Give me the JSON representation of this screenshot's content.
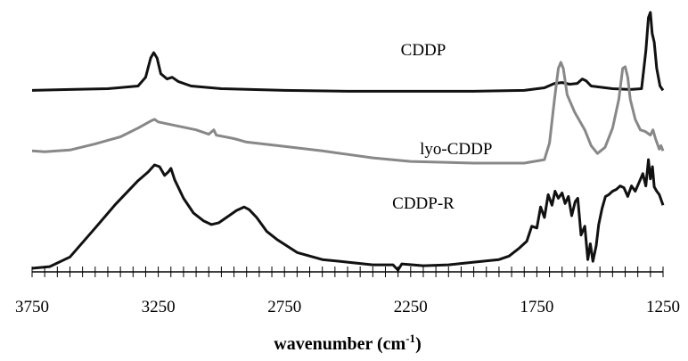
{
  "chart_data": {
    "type": "line",
    "title": "",
    "xlabel": "wavenumber (cm",
    "xlabel_sup": "-1",
    "xlabel_suffix": ")",
    "ylabel": "",
    "x_reversed": true,
    "xlim": [
      3750,
      1250
    ],
    "xticks": [
      "3750",
      "3250",
      "2750",
      "2250",
      "1750",
      "1250"
    ],
    "minor_tick_step": 50,
    "ylim": [
      0,
      3
    ],
    "grid": false,
    "legend": "none (series labeled inline)",
    "series": [
      {
        "name": "CDDP",
        "color": "#111111",
        "label_at": [
          2200,
          2.45
        ],
        "points": [
          [
            3750,
            2.05
          ],
          [
            3600,
            2.06
          ],
          [
            3450,
            2.07
          ],
          [
            3330,
            2.1
          ],
          [
            3300,
            2.2
          ],
          [
            3280,
            2.42
          ],
          [
            3268,
            2.48
          ],
          [
            3255,
            2.42
          ],
          [
            3240,
            2.24
          ],
          [
            3215,
            2.18
          ],
          [
            3195,
            2.2
          ],
          [
            3170,
            2.15
          ],
          [
            3120,
            2.1
          ],
          [
            3000,
            2.07
          ],
          [
            2750,
            2.05
          ],
          [
            2500,
            2.04
          ],
          [
            2250,
            2.04
          ],
          [
            2000,
            2.04
          ],
          [
            1800,
            2.05
          ],
          [
            1720,
            2.08
          ],
          [
            1680,
            2.13
          ],
          [
            1650,
            2.14
          ],
          [
            1620,
            2.12
          ],
          [
            1590,
            2.13
          ],
          [
            1570,
            2.18
          ],
          [
            1555,
            2.16
          ],
          [
            1535,
            2.1
          ],
          [
            1450,
            2.07
          ],
          [
            1380,
            2.06
          ],
          [
            1335,
            2.07
          ],
          [
            1318,
            2.5
          ],
          [
            1308,
            2.88
          ],
          [
            1300,
            2.94
          ],
          [
            1293,
            2.7
          ],
          [
            1285,
            2.6
          ],
          [
            1275,
            2.3
          ],
          [
            1262,
            2.1
          ],
          [
            1250,
            2.05
          ]
        ]
      },
      {
        "name": "lyo-CDDP",
        "color": "#888888",
        "label_at": [
          2070,
          1.32
        ],
        "points": [
          [
            3750,
            1.36
          ],
          [
            3700,
            1.35
          ],
          [
            3600,
            1.37
          ],
          [
            3500,
            1.44
          ],
          [
            3400,
            1.52
          ],
          [
            3330,
            1.62
          ],
          [
            3280,
            1.7
          ],
          [
            3265,
            1.72
          ],
          [
            3250,
            1.69
          ],
          [
            3200,
            1.66
          ],
          [
            3100,
            1.6
          ],
          [
            3050,
            1.55
          ],
          [
            3030,
            1.6
          ],
          [
            3020,
            1.54
          ],
          [
            2950,
            1.5
          ],
          [
            2900,
            1.46
          ],
          [
            2750,
            1.41
          ],
          [
            2600,
            1.36
          ],
          [
            2500,
            1.32
          ],
          [
            2400,
            1.28
          ],
          [
            2250,
            1.24
          ],
          [
            2000,
            1.22
          ],
          [
            1800,
            1.22
          ],
          [
            1720,
            1.26
          ],
          [
            1700,
            1.45
          ],
          [
            1680,
            1.95
          ],
          [
            1665,
            2.3
          ],
          [
            1655,
            2.37
          ],
          [
            1645,
            2.3
          ],
          [
            1630,
            2.0
          ],
          [
            1600,
            1.8
          ],
          [
            1560,
            1.6
          ],
          [
            1535,
            1.42
          ],
          [
            1510,
            1.33
          ],
          [
            1480,
            1.4
          ],
          [
            1450,
            1.62
          ],
          [
            1425,
            1.95
          ],
          [
            1410,
            2.3
          ],
          [
            1400,
            2.32
          ],
          [
            1390,
            2.2
          ],
          [
            1380,
            1.95
          ],
          [
            1360,
            1.72
          ],
          [
            1340,
            1.6
          ],
          [
            1320,
            1.58
          ],
          [
            1300,
            1.54
          ],
          [
            1290,
            1.6
          ],
          [
            1280,
            1.5
          ],
          [
            1265,
            1.38
          ],
          [
            1258,
            1.42
          ],
          [
            1250,
            1.36
          ]
        ]
      },
      {
        "name": "CDDP-R",
        "color": "#111111",
        "label_at": [
          2200,
          0.7
        ],
        "points": [
          [
            3750,
            0.02
          ],
          [
            3680,
            0.04
          ],
          [
            3600,
            0.15
          ],
          [
            3500,
            0.48
          ],
          [
            3420,
            0.75
          ],
          [
            3330,
            1.02
          ],
          [
            3290,
            1.12
          ],
          [
            3265,
            1.2
          ],
          [
            3245,
            1.18
          ],
          [
            3225,
            1.08
          ],
          [
            3210,
            1.12
          ],
          [
            3200,
            1.16
          ],
          [
            3185,
            1.03
          ],
          [
            3150,
            0.82
          ],
          [
            3110,
            0.65
          ],
          [
            3070,
            0.56
          ],
          [
            3040,
            0.52
          ],
          [
            3010,
            0.54
          ],
          [
            2980,
            0.6
          ],
          [
            2940,
            0.68
          ],
          [
            2910,
            0.72
          ],
          [
            2890,
            0.69
          ],
          [
            2860,
            0.6
          ],
          [
            2820,
            0.44
          ],
          [
            2780,
            0.35
          ],
          [
            2700,
            0.2
          ],
          [
            2600,
            0.12
          ],
          [
            2500,
            0.09
          ],
          [
            2400,
            0.06
          ],
          [
            2320,
            0.06
          ],
          [
            2300,
            0.0
          ],
          [
            2285,
            0.07
          ],
          [
            2200,
            0.05
          ],
          [
            2100,
            0.06
          ],
          [
            2000,
            0.09
          ],
          [
            1900,
            0.12
          ],
          [
            1860,
            0.16
          ],
          [
            1820,
            0.25
          ],
          [
            1790,
            0.33
          ],
          [
            1770,
            0.5
          ],
          [
            1750,
            0.48
          ],
          [
            1735,
            0.72
          ],
          [
            1720,
            0.6
          ],
          [
            1705,
            0.86
          ],
          [
            1690,
            0.74
          ],
          [
            1678,
            0.9
          ],
          [
            1665,
            0.82
          ],
          [
            1650,
            0.88
          ],
          [
            1638,
            0.76
          ],
          [
            1625,
            0.84
          ],
          [
            1612,
            0.62
          ],
          [
            1598,
            0.78
          ],
          [
            1588,
            0.82
          ],
          [
            1575,
            0.4
          ],
          [
            1560,
            0.5
          ],
          [
            1548,
            0.12
          ],
          [
            1538,
            0.3
          ],
          [
            1528,
            0.1
          ],
          [
            1515,
            0.28
          ],
          [
            1505,
            0.52
          ],
          [
            1492,
            0.7
          ],
          [
            1478,
            0.84
          ],
          [
            1465,
            0.86
          ],
          [
            1450,
            0.9
          ],
          [
            1435,
            0.92
          ],
          [
            1420,
            0.96
          ],
          [
            1405,
            0.94
          ],
          [
            1390,
            0.84
          ],
          [
            1375,
            0.96
          ],
          [
            1360,
            0.9
          ],
          [
            1345,
            1.0
          ],
          [
            1330,
            1.1
          ],
          [
            1318,
            0.96
          ],
          [
            1308,
            1.26
          ],
          [
            1300,
            1.04
          ],
          [
            1292,
            1.18
          ],
          [
            1285,
            0.95
          ],
          [
            1275,
            0.9
          ],
          [
            1265,
            0.86
          ],
          [
            1255,
            0.78
          ],
          [
            1250,
            0.74
          ]
        ]
      }
    ]
  }
}
